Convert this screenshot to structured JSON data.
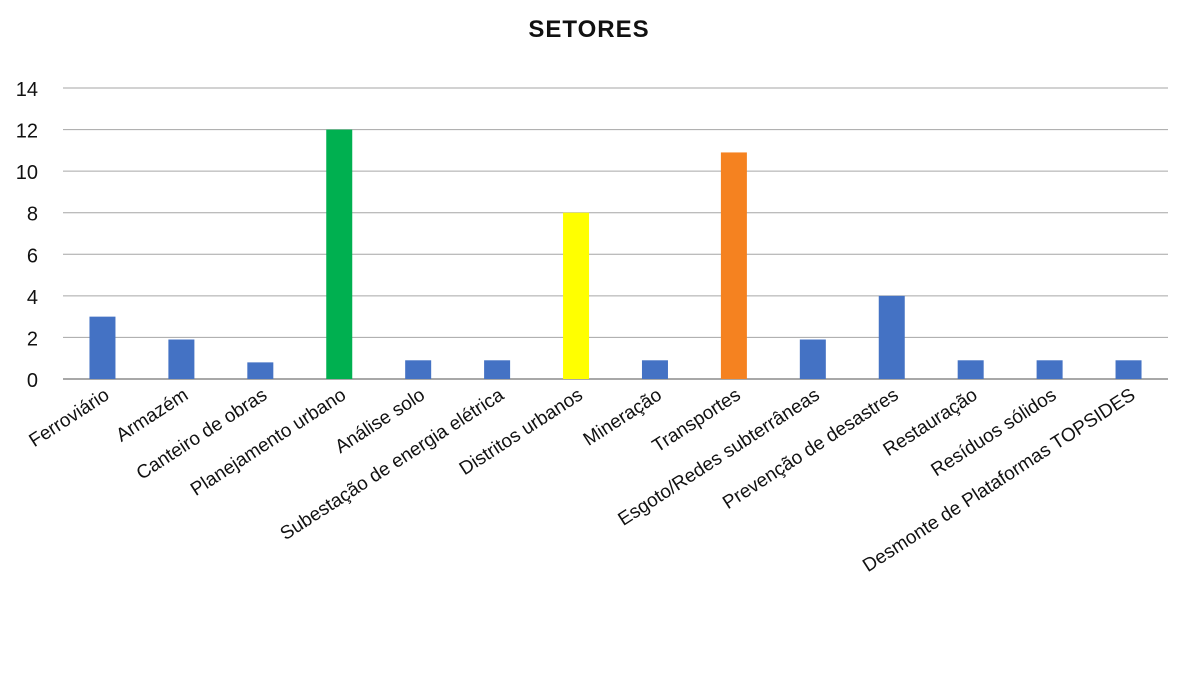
{
  "chart_data": {
    "type": "bar",
    "title": "SETORES",
    "xlabel": "",
    "ylabel": "",
    "ylim": [
      0,
      14
    ],
    "yticks": [
      0,
      2,
      4,
      6,
      8,
      10,
      12,
      14
    ],
    "grid": true,
    "legend": "none",
    "categories": [
      "Ferroviário",
      "Armazém",
      "Canteiro de obras",
      "Planejamento urbano",
      "Análise solo",
      "Subestação de energia elétrica",
      "Distritos urbanos",
      "Mineração",
      "Transportes",
      "Esgoto/Redes subterrâneas",
      "Prevenção de desastres",
      "Restauração",
      "Resíduos sólidos",
      "Desmonte de Plataformas TOPSIDES"
    ],
    "values": [
      3,
      1.9,
      0.8,
      12,
      0.9,
      0.9,
      8,
      0.9,
      10.9,
      1.9,
      4,
      0.9,
      0.9,
      0.9
    ],
    "bar_colors": [
      "#4472c4",
      "#4472c4",
      "#4472c4",
      "#00b050",
      "#4472c4",
      "#4472c4",
      "#ffff00",
      "#4472c4",
      "#f58220",
      "#4472c4",
      "#4472c4",
      "#4472c4",
      "#4472c4",
      "#4472c4"
    ]
  }
}
